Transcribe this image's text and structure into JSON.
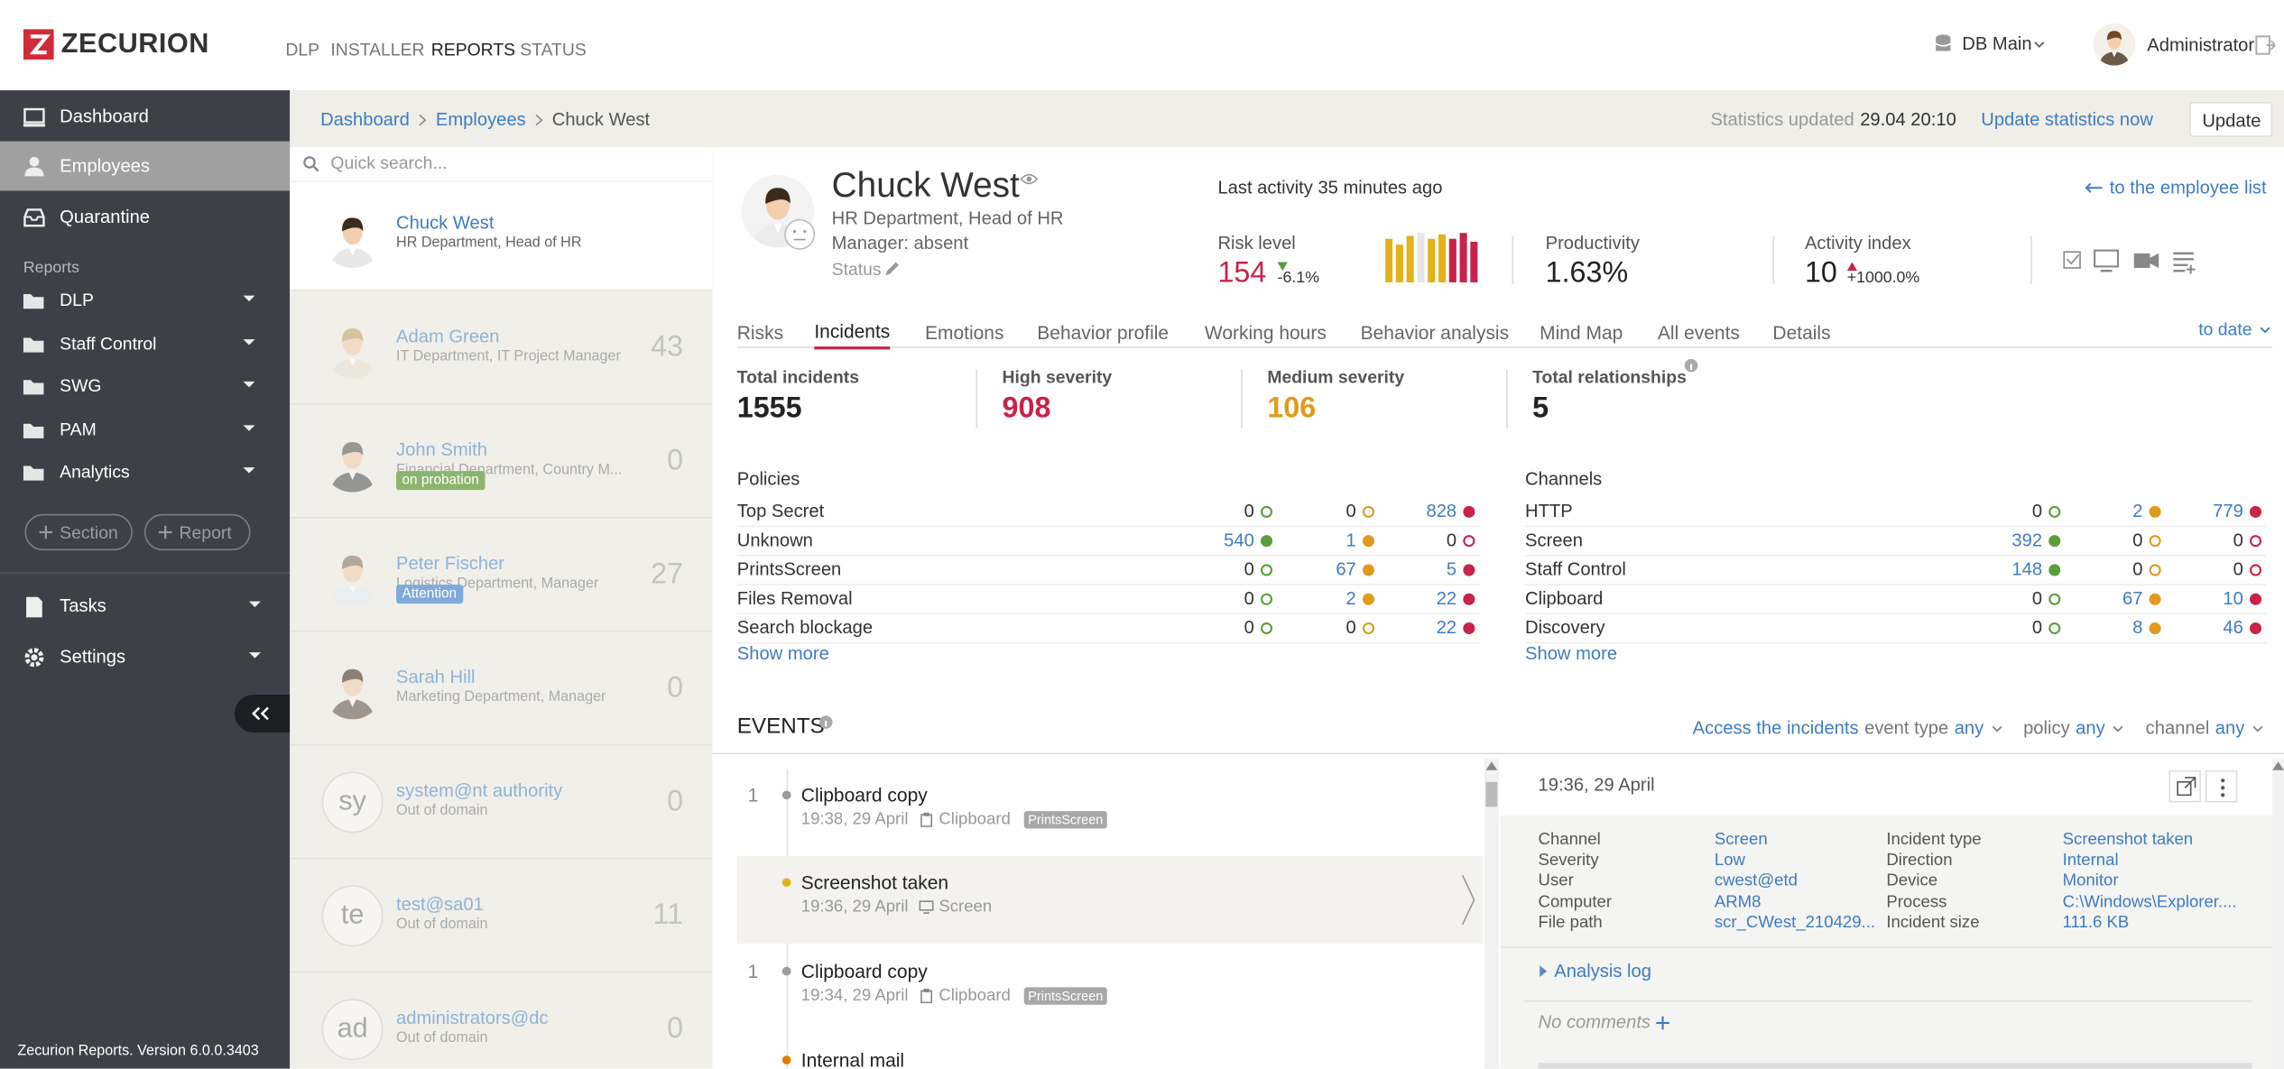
{
  "header": {
    "logo": "ZECURION",
    "nav": [
      "DLP",
      "INSTALLER",
      "REPORTS",
      "STATUS"
    ],
    "active_nav": 2,
    "db": "DB Main",
    "user": "Administrator"
  },
  "sidebar": {
    "top": [
      "Dashboard",
      "Employees",
      "Quarantine"
    ],
    "active": 1,
    "reports_label": "Reports",
    "reports": [
      "DLP",
      "Staff Control",
      "SWG",
      "PAM",
      "Analytics"
    ],
    "buttons": [
      "Section",
      "Report"
    ],
    "bottom": [
      "Tasks",
      "Settings"
    ],
    "version": "Zecurion Reports. Version 6.0.0.3403"
  },
  "breadcrumb": [
    "Dashboard",
    "Employees",
    "Chuck West"
  ],
  "statistics": {
    "label": "Statistics updated",
    "time": "29.04 20:10",
    "link": "Update statistics now",
    "button": "Update"
  },
  "search_placeholder": "Quick search...",
  "employees": [
    {
      "name": "Chuck West",
      "dept": "HR Department, Head of HR",
      "selected": true
    },
    {
      "name": "Adam Green",
      "dept": "IT Department, IT Project Manager",
      "count": 43
    },
    {
      "name": "John Smith",
      "dept": "Financial Department, Country M...",
      "badge": "on probation",
      "badge_color": "#8db46c",
      "count": 0
    },
    {
      "name": "Peter Fischer",
      "dept": "Logistics Department, Manager",
      "badge": "Attention",
      "badge_color": "#7eaadb",
      "count": 27
    },
    {
      "name": "Sarah Hill",
      "dept": "Marketing Department, Manager",
      "count": 0
    },
    {
      "name": "system@nt authority",
      "dept": "Out of domain",
      "initials": "sy",
      "count": 0
    },
    {
      "name": "test@sa01",
      "dept": "Out of domain",
      "initials": "te",
      "count": 11
    },
    {
      "name": "administrators@dc",
      "dept": "Out of domain",
      "initials": "ad",
      "count": 0
    }
  ],
  "profile": {
    "name": "Chuck West",
    "position": "HR Department, Head of HR",
    "manager": "Manager: absent",
    "status": "Status",
    "last_activity": "Last activity 35 minutes ago",
    "back_link": "to the employee list",
    "metrics": [
      {
        "label": "Risk level",
        "value": 154,
        "change": "-6.1%",
        "color": "#c8234a"
      },
      {
        "label": "Productivity",
        "value": "1.63%"
      },
      {
        "label": "Activity index",
        "value": 10,
        "change": "+1000.0%"
      }
    ]
  },
  "tabs": {
    "items": [
      "Risks",
      "Incidents",
      "Emotions",
      "Behavior profile",
      "Working hours",
      "Behavior analysis",
      "Mind Map",
      "All events",
      "Details"
    ],
    "active": 1,
    "date": "to date"
  },
  "totals": [
    {
      "label": "Total incidents",
      "value": 1555
    },
    {
      "label": "High severity",
      "value": 908,
      "color": "#c8234a"
    },
    {
      "label": "Medium severity",
      "value": 106,
      "color": "#e09a1c"
    },
    {
      "label": "Total relationships",
      "value": 5
    }
  ],
  "severity_colors": [
    "#5a9e3a",
    "#e09a1c",
    "#c8234a"
  ],
  "policies": {
    "title": "Policies",
    "more": "Show more",
    "rows": [
      {
        "name": "Top Secret",
        "values": [
          0,
          0,
          828
        ]
      },
      {
        "name": "Unknown",
        "values": [
          540,
          1,
          0
        ]
      },
      {
        "name": "PrintsScreen",
        "values": [
          0,
          67,
          5
        ]
      },
      {
        "name": "Files Removal",
        "values": [
          0,
          2,
          22
        ]
      },
      {
        "name": "Search blockage",
        "values": [
          0,
          0,
          22
        ]
      }
    ]
  },
  "channels": {
    "title": "Channels",
    "more": "Show more",
    "rows": [
      {
        "name": "HTTP",
        "values": [
          0,
          2,
          779
        ]
      },
      {
        "name": "Screen",
        "values": [
          392,
          0,
          0
        ]
      },
      {
        "name": "Staff Control",
        "values": [
          148,
          0,
          0
        ]
      },
      {
        "name": "Clipboard",
        "values": [
          0,
          67,
          10
        ]
      },
      {
        "name": "Discovery",
        "values": [
          0,
          8,
          46
        ]
      }
    ]
  },
  "events": {
    "title": "EVENTS",
    "access": "Access the incidents",
    "filters": [
      {
        "label": "event type",
        "value": "any"
      },
      {
        "label": "policy",
        "value": "any"
      },
      {
        "label": "channel",
        "value": "any"
      }
    ],
    "items": [
      {
        "count": 1,
        "title": "Clipboard copy",
        "time": "19:38, 29 April",
        "channel": "Clipboard",
        "tag": "PrintsScreen",
        "dot": "#9a9a9a"
      },
      {
        "title": "Screenshot taken",
        "time": "19:36, 29 April",
        "channel": "Screen",
        "dot": "#e3b21a",
        "selected": true
      },
      {
        "count": 1,
        "title": "Clipboard copy",
        "time": "19:34, 29 April",
        "channel": "Clipboard",
        "tag": "PrintsScreen",
        "dot": "#9a9a9a"
      },
      {
        "title": "Internal mail",
        "dot": "#e07a00"
      }
    ]
  },
  "detail": {
    "time": "19:36, 29 April",
    "fields": [
      [
        "Channel",
        "Screen"
      ],
      [
        "Severity",
        "Low"
      ],
      [
        "User",
        "cwest@etd"
      ],
      [
        "Computer",
        "ARM8"
      ],
      [
        "File path",
        "scr_CWest_210429..."
      ],
      [
        "Incident type",
        "Screenshot taken"
      ],
      [
        "Direction",
        "Internal"
      ],
      [
        "Device",
        "Monitor"
      ],
      [
        "Process",
        "C:\\Windows\\Explorer...."
      ],
      [
        "Incident size",
        "111.6 KB"
      ]
    ],
    "analysis": "Analysis log",
    "comments": "No comments"
  }
}
